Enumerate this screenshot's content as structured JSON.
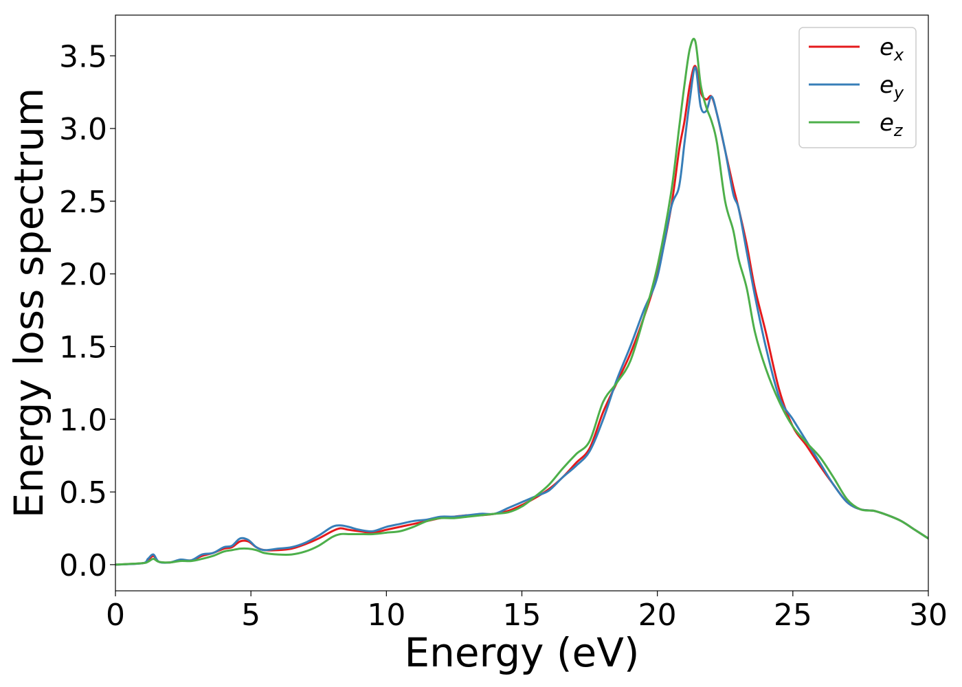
{
  "chart_data": {
    "type": "line",
    "title": "",
    "xlabel": "Energy (eV)",
    "ylabel": "Energy loss spectrum",
    "xlim": [
      0,
      30
    ],
    "ylim": [
      -0.18,
      3.78
    ],
    "xticks": [
      "0",
      "5",
      "10",
      "15",
      "20",
      "25",
      "30"
    ],
    "yticks": [
      "0.0",
      "0.5",
      "1.0",
      "1.5",
      "2.0",
      "2.5",
      "3.0",
      "3.5"
    ],
    "grid": false,
    "legend_position": "top-right",
    "series": [
      {
        "name": "e_x",
        "legend_base": "e",
        "legend_sub": "x",
        "color": "#e41a1c",
        "x": [
          0,
          1,
          1.2,
          1.4,
          1.6,
          2.0,
          2.4,
          2.8,
          3.2,
          3.6,
          4.0,
          4.3,
          4.6,
          4.9,
          5.2,
          5.5,
          6.0,
          6.5,
          7.0,
          7.5,
          8.0,
          8.3,
          8.6,
          9.0,
          9.5,
          10,
          10.5,
          11,
          11.5,
          12,
          12.5,
          13,
          13.5,
          14,
          14.5,
          15,
          15.5,
          16,
          16.5,
          17,
          17.5,
          18,
          18.5,
          19,
          19.5,
          20,
          20.5,
          20.8,
          21.0,
          21.2,
          21.4,
          21.6,
          21.8,
          22.0,
          22.2,
          22.5,
          22.8,
          23.0,
          23.3,
          23.6,
          24.0,
          24.5,
          25.0,
          25.5,
          26.0,
          26.5,
          27.0,
          27.5,
          28.0,
          28.5,
          29.0,
          29.5,
          30
        ],
        "y": [
          0.0,
          0.01,
          0.03,
          0.06,
          0.02,
          0.015,
          0.03,
          0.03,
          0.06,
          0.08,
          0.11,
          0.12,
          0.16,
          0.16,
          0.12,
          0.1,
          0.1,
          0.11,
          0.14,
          0.18,
          0.23,
          0.25,
          0.24,
          0.23,
          0.22,
          0.24,
          0.26,
          0.28,
          0.3,
          0.32,
          0.33,
          0.34,
          0.34,
          0.35,
          0.37,
          0.41,
          0.46,
          0.52,
          0.6,
          0.7,
          0.8,
          1.05,
          1.25,
          1.45,
          1.7,
          2.0,
          2.45,
          2.85,
          3.05,
          3.3,
          3.43,
          3.25,
          3.2,
          3.22,
          3.1,
          2.85,
          2.6,
          2.45,
          2.2,
          1.9,
          1.6,
          1.2,
          0.95,
          0.82,
          0.68,
          0.55,
          0.43,
          0.38,
          0.37,
          0.34,
          0.3,
          0.24,
          0.18
        ]
      },
      {
        "name": "e_y",
        "legend_base": "e",
        "legend_sub": "y",
        "color": "#377eb8",
        "x": [
          0,
          1,
          1.2,
          1.4,
          1.6,
          2.0,
          2.4,
          2.8,
          3.2,
          3.6,
          4.0,
          4.3,
          4.6,
          4.9,
          5.2,
          5.5,
          6.0,
          6.5,
          7.0,
          7.5,
          8.0,
          8.3,
          8.6,
          9.0,
          9.5,
          10,
          10.5,
          11,
          11.5,
          12,
          12.5,
          13,
          13.5,
          14,
          14.5,
          15,
          15.5,
          16,
          16.5,
          17,
          17.5,
          18,
          18.5,
          19,
          19.5,
          20,
          20.5,
          20.8,
          21.0,
          21.2,
          21.4,
          21.6,
          21.8,
          22.0,
          22.2,
          22.5,
          22.8,
          23.0,
          23.3,
          23.6,
          24.0,
          24.5,
          25.0,
          25.5,
          26.0,
          26.5,
          27.0,
          27.5,
          28.0,
          28.5,
          29.0,
          29.5,
          30
        ],
        "y": [
          0.0,
          0.01,
          0.04,
          0.07,
          0.02,
          0.015,
          0.035,
          0.03,
          0.07,
          0.08,
          0.12,
          0.13,
          0.18,
          0.17,
          0.12,
          0.1,
          0.11,
          0.12,
          0.15,
          0.2,
          0.26,
          0.27,
          0.26,
          0.24,
          0.23,
          0.26,
          0.28,
          0.3,
          0.31,
          0.33,
          0.33,
          0.34,
          0.35,
          0.35,
          0.39,
          0.43,
          0.47,
          0.51,
          0.6,
          0.68,
          0.78,
          1.0,
          1.27,
          1.5,
          1.75,
          1.98,
          2.45,
          2.6,
          2.9,
          3.2,
          3.42,
          3.15,
          3.12,
          3.22,
          3.1,
          2.85,
          2.55,
          2.45,
          2.15,
          1.85,
          1.5,
          1.15,
          1.0,
          0.85,
          0.7,
          0.55,
          0.43,
          0.38,
          0.37,
          0.34,
          0.3,
          0.24,
          0.18
        ]
      },
      {
        "name": "e_z",
        "legend_base": "e",
        "legend_sub": "z",
        "color": "#4daf4a",
        "x": [
          0,
          1,
          1.2,
          1.4,
          1.6,
          2.0,
          2.4,
          2.8,
          3.2,
          3.6,
          4.0,
          4.3,
          4.6,
          4.9,
          5.2,
          5.5,
          6.0,
          6.5,
          7.0,
          7.5,
          8.0,
          8.3,
          8.6,
          9.0,
          9.5,
          10,
          10.5,
          11,
          11.5,
          12,
          12.5,
          13,
          13.5,
          14,
          14.5,
          15,
          15.5,
          16,
          16.5,
          17,
          17.5,
          18,
          18.5,
          19,
          19.5,
          20,
          20.5,
          20.8,
          21.0,
          21.2,
          21.4,
          21.6,
          21.8,
          22.0,
          22.2,
          22.5,
          22.8,
          23.0,
          23.3,
          23.6,
          24.0,
          24.5,
          25.0,
          25.5,
          26.0,
          26.5,
          27.0,
          27.5,
          28.0,
          28.5,
          29.0,
          29.5,
          30
        ],
        "y": [
          0.0,
          0.01,
          0.02,
          0.04,
          0.02,
          0.015,
          0.025,
          0.025,
          0.04,
          0.06,
          0.09,
          0.1,
          0.11,
          0.11,
          0.1,
          0.08,
          0.07,
          0.07,
          0.09,
          0.13,
          0.19,
          0.21,
          0.21,
          0.21,
          0.21,
          0.22,
          0.23,
          0.26,
          0.3,
          0.32,
          0.32,
          0.33,
          0.34,
          0.35,
          0.36,
          0.4,
          0.47,
          0.55,
          0.66,
          0.76,
          0.85,
          1.12,
          1.25,
          1.4,
          1.7,
          2.05,
          2.55,
          3.0,
          3.3,
          3.55,
          3.6,
          3.3,
          3.15,
          3.05,
          2.9,
          2.5,
          2.3,
          2.1,
          1.9,
          1.6,
          1.35,
          1.12,
          0.95,
          0.84,
          0.74,
          0.6,
          0.45,
          0.38,
          0.37,
          0.34,
          0.3,
          0.24,
          0.18
        ]
      }
    ]
  }
}
